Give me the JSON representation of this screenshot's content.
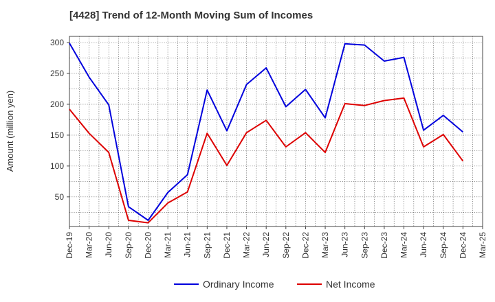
{
  "chart_data": {
    "type": "line",
    "title": "[4428]  Trend of 12-Month Moving Sum of Incomes",
    "xlabel": "",
    "ylabel": "Amount (million yen)",
    "categories": [
      "Dec-19",
      "Mar-20",
      "Jun-20",
      "Sep-20",
      "Dec-20",
      "Mar-21",
      "Jun-21",
      "Sep-21",
      "Dec-21",
      "Mar-22",
      "Jun-22",
      "Sep-22",
      "Dec-22",
      "Mar-23",
      "Jun-23",
      "Sep-23",
      "Dec-23",
      "Mar-24",
      "Jun-24",
      "Sep-24",
      "Dec-24",
      "Mar-25"
    ],
    "yticks": [
      50,
      100,
      150,
      200,
      250,
      300
    ],
    "ylim": [
      2,
      310
    ],
    "grid": true,
    "legend_position": "bottom-center",
    "series": [
      {
        "name": "Ordinary Income",
        "color": "#0000dd",
        "values": [
          299,
          244,
          199,
          34,
          12,
          57,
          86,
          223,
          157,
          232,
          259,
          196,
          224,
          178,
          298,
          296,
          270,
          276,
          158,
          182,
          155,
          null
        ]
      },
      {
        "name": "Net Income",
        "color": "#dd0000",
        "values": [
          192,
          153,
          122,
          12,
          8,
          40,
          58,
          153,
          101,
          154,
          174,
          131,
          154,
          122,
          201,
          198,
          206,
          210,
          131,
          151,
          108,
          null
        ]
      }
    ]
  }
}
